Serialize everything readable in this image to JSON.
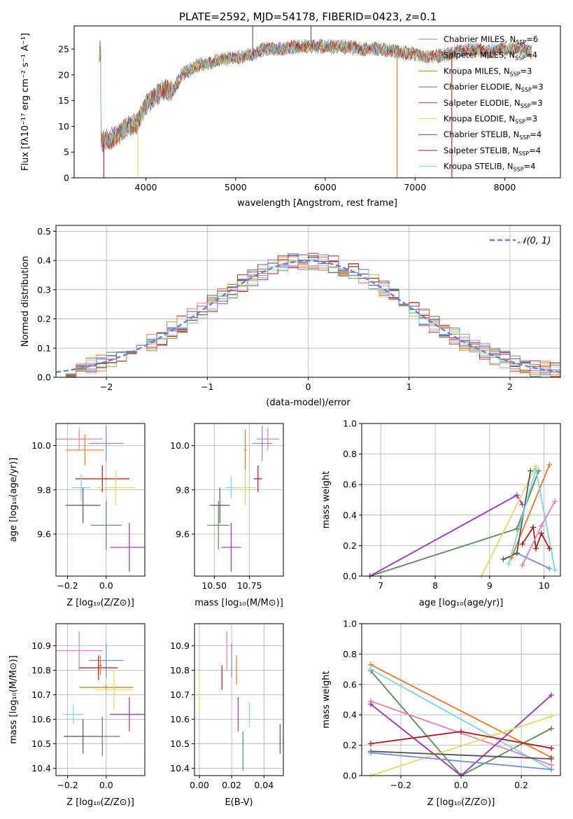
{
  "title": "PLATE=2592, MJD=54178, FIBERID=0423, z=0.1",
  "colors": {
    "Chabrier MILES": "#6f8fd9",
    "Salpeter MILES": "#e8782a",
    "Kroupa MILES": "#c07a18",
    "Chabrier ELODIE": "#5a8a5a",
    "Salpeter ELODIE": "#9b32b0",
    "Kroupa ELODIE": "#d8e060",
    "Chabrier STELIB": "#555555",
    "Salpeter STELIB": "#b01818",
    "Kroupa STELIB": "#79d6e2",
    "pink": "#e67fb0",
    "normal": "#5588dd"
  },
  "chart_data": [
    {
      "type": "line",
      "id": "spectrum",
      "title": "PLATE=2592, MJD=54178, FIBERID=0423, z=0.1",
      "xlabel": "wavelength [Angstrom, rest frame]",
      "ylabel": "Flux [fλ10⁻¹⁷ erg cm⁻² s⁻¹ A⁻¹]",
      "xlim": [
        3200,
        8620
      ],
      "ylim": [
        0,
        29.5
      ],
      "xticks": [
        "4000",
        "5000",
        "6000",
        "7000",
        "8000"
      ],
      "yticks": [
        "0",
        "5",
        "10",
        "15",
        "20",
        "25"
      ],
      "continuum": [
        [
          3500,
          7
        ],
        [
          3600,
          7.5
        ],
        [
          3700,
          8.5
        ],
        [
          3800,
          10
        ],
        [
          3900,
          10.5
        ],
        [
          4000,
          14
        ],
        [
          4100,
          16
        ],
        [
          4200,
          17
        ],
        [
          4300,
          17
        ],
        [
          4400,
          20
        ],
        [
          4500,
          21
        ],
        [
          4600,
          22
        ],
        [
          4700,
          22
        ],
        [
          4800,
          23
        ],
        [
          4900,
          23
        ],
        [
          5000,
          23.5
        ],
        [
          5100,
          23.5
        ],
        [
          5200,
          24
        ],
        [
          5300,
          25
        ],
        [
          5500,
          25
        ],
        [
          5700,
          25.5
        ],
        [
          5800,
          25.5
        ],
        [
          6000,
          25.5
        ],
        [
          6200,
          25.5
        ],
        [
          6400,
          25
        ],
        [
          6600,
          25
        ],
        [
          6800,
          24.5
        ],
        [
          7000,
          24
        ],
        [
          7200,
          23.5
        ],
        [
          7400,
          24
        ],
        [
          7600,
          25
        ],
        [
          7800,
          24.5
        ],
        [
          8000,
          25
        ],
        [
          8200,
          25
        ],
        [
          8300,
          24.5
        ]
      ],
      "legend": [
        {
          "label": "Chabrier MILES, N",
          "sub": "SSP",
          "tail": "=6",
          "color": "#6f8fd9"
        },
        {
          "label": "Salpeter MILES, N",
          "sub": "SSP",
          "tail": "=4",
          "color": "#e8782a"
        },
        {
          "label": "Kroupa MILES, N",
          "sub": "SSP",
          "tail": "=3",
          "color": "#c07a18"
        },
        {
          "label": "Chabrier ELODIE, N",
          "sub": "SSP",
          "tail": "=3",
          "color": "#5a8a5a"
        },
        {
          "label": "Salpeter ELODIE, N",
          "sub": "SSP",
          "tail": "=3",
          "color": "#9b32b0"
        },
        {
          "label": "Kroupa ELODIE, N",
          "sub": "SSP",
          "tail": "=3",
          "color": "#d8e060"
        },
        {
          "label": "Chabrier STELIB, N",
          "sub": "SSP",
          "tail": "=4",
          "color": "#555555"
        },
        {
          "label": "Salpeter STELIB, N",
          "sub": "SSP",
          "tail": "=4",
          "color": "#b01818"
        },
        {
          "label": "Kroupa STELIB, N",
          "sub": "SSP",
          "tail": "=4",
          "color": "#79d6e2"
        }
      ],
      "legend_position": "top-right"
    },
    {
      "type": "area",
      "id": "residuals",
      "xlabel": "(data-model)/error",
      "ylabel": "Normed distribution",
      "xlim": [
        -2.5,
        2.5
      ],
      "ylim": [
        0,
        0.52
      ],
      "xticks": [
        "−2",
        "−1",
        "0",
        "1",
        "2"
      ],
      "yticks": [
        "0.0",
        "0.1",
        "0.2",
        "0.3",
        "0.4",
        "0.5"
      ],
      "bin_width": 0.1,
      "bin_start": -2.5,
      "curve_label": "𝒩(0, 1)",
      "grid": true,
      "legend_position": "top-right"
    },
    {
      "type": "scatter",
      "id": "z-age",
      "xlabel": "Z [log₁₀(Z/Z⊙)]",
      "ylabel": "age  [log₁₀(age/yr)]",
      "xlim": [
        -0.26,
        0.2
      ],
      "ylim": [
        9.41,
        10.1
      ],
      "xticks": [
        "−0.2",
        "0.0"
      ],
      "yticks": [
        "9.6",
        "9.8",
        "10.0"
      ],
      "points": [
        {
          "x": -0.14,
          "y": 10.03,
          "xe": 0.12,
          "ye": 0.05,
          "c": "#e67fb0"
        },
        {
          "x": 0.0,
          "y": 10.01,
          "xe": 0.09,
          "ye": 0.08,
          "c": "#6f8fd9"
        },
        {
          "x": -0.11,
          "y": 9.98,
          "xe": 0.1,
          "ye": 0.07,
          "c": "#e8782a"
        },
        {
          "x": -0.02,
          "y": 9.85,
          "xe": 0.14,
          "ye": 0.06,
          "c": "#b01818"
        },
        {
          "x": -0.13,
          "y": 9.81,
          "xe": 0.05,
          "ye": 0.06,
          "c": "#79d6e2"
        },
        {
          "x": 0.05,
          "y": 9.81,
          "xe": 0.1,
          "ye": 0.08,
          "c": "#d8e060"
        },
        {
          "x": -0.12,
          "y": 9.73,
          "xe": 0.09,
          "ye": 0.08,
          "c": "#555555"
        },
        {
          "x": 0.0,
          "y": 9.64,
          "xe": 0.08,
          "ye": 0.11,
          "c": "#5a8a5a"
        },
        {
          "x": 0.12,
          "y": 9.54,
          "xe": 0.1,
          "ye": 0.11,
          "c": "#9b32b0"
        }
      ]
    },
    {
      "type": "scatter",
      "id": "mass-age",
      "xlabel": "mass [log₁₀(M/M⊙)]",
      "ylabel": "",
      "xlim": [
        10.36,
        10.99
      ],
      "ylim": [
        9.41,
        10.1
      ],
      "xticks": [
        "10.50",
        "10.75"
      ],
      "yticks": [
        "9.6",
        "9.8",
        "10.0"
      ],
      "points": [
        {
          "x": 10.88,
          "y": 10.03,
          "xe": 0.08,
          "ye": 0.05,
          "c": "#e67fb0"
        },
        {
          "x": 10.84,
          "y": 10.01,
          "xe": 0.07,
          "ye": 0.08,
          "c": "#6f8fd9"
        },
        {
          "x": 10.72,
          "y": 9.98,
          "xe": 0.01,
          "ye": 0.09,
          "c": "#e8782a"
        },
        {
          "x": 10.81,
          "y": 9.85,
          "xe": 0.03,
          "ye": 0.06,
          "c": "#b01818"
        },
        {
          "x": 10.62,
          "y": 9.81,
          "xe": 0.04,
          "ye": 0.05,
          "c": "#79d6e2"
        },
        {
          "x": 10.72,
          "y": 9.81,
          "xe": 0.08,
          "ye": 0.08,
          "c": "#d8e060"
        },
        {
          "x": 10.54,
          "y": 9.73,
          "xe": 0.07,
          "ye": 0.08,
          "c": "#555555"
        },
        {
          "x": 10.53,
          "y": 9.64,
          "xe": 0.08,
          "ye": 0.11,
          "c": "#5a8a5a"
        },
        {
          "x": 10.62,
          "y": 9.54,
          "xe": 0.07,
          "ye": 0.11,
          "c": "#9b32b0"
        }
      ]
    },
    {
      "type": "line",
      "id": "age-weight",
      "xlabel": "age  [log₁₀(age/yr)]",
      "ylabel": "mass weight",
      "xlim": [
        6.65,
        10.3
      ],
      "ylim": [
        0,
        1.0
      ],
      "xticks": [
        "7",
        "8",
        "9",
        "10"
      ],
      "yticks": [
        "0.0",
        "0.2",
        "0.4",
        "0.6",
        "0.8",
        "1.0"
      ],
      "series": [
        {
          "c": "#5a8a5a",
          "pts": [
            [
              6.8,
              0.0
            ],
            [
              9.5,
              0.31
            ],
            [
              9.9,
              0.69
            ]
          ]
        },
        {
          "c": "#9b32b0",
          "pts": [
            [
              6.8,
              0.0
            ],
            [
              9.5,
              0.53
            ],
            [
              9.6,
              0.47
            ]
          ]
        },
        {
          "c": "#d8e060",
          "pts": [
            [
              8.85,
              0.0
            ],
            [
              9.85,
              0.72
            ]
          ]
        },
        {
          "c": "#e8782a",
          "pts": [
            [
              9.4,
              0.12
            ],
            [
              10.1,
              0.73
            ]
          ]
        },
        {
          "c": "#6f8fd9",
          "pts": [
            [
              9.5,
              0.15
            ],
            [
              10.1,
              0.05
            ]
          ]
        },
        {
          "c": "#555555",
          "pts": [
            [
              9.25,
              0.11
            ],
            [
              9.5,
              0.15
            ],
            [
              9.75,
              0.69
            ]
          ]
        },
        {
          "c": "#b01818",
          "pts": [
            [
              9.6,
              0.21
            ],
            [
              9.8,
              0.32
            ],
            [
              9.85,
              0.18
            ],
            [
              9.95,
              0.28
            ],
            [
              10.1,
              0.18
            ]
          ]
        },
        {
          "c": "#79d6e2",
          "pts": [
            [
              9.35,
              0.08
            ],
            [
              9.85,
              0.7
            ],
            [
              10.2,
              0.04
            ]
          ]
        },
        {
          "c": "#e67fb0",
          "pts": [
            [
              9.6,
              0.07
            ],
            [
              9.95,
              0.33
            ],
            [
              10.2,
              0.49
            ]
          ]
        }
      ]
    },
    {
      "type": "scatter",
      "id": "z-mass",
      "xlabel": "Z [log₁₀(Z/Z⊙)]",
      "ylabel": "mass [log₁₀(M/M⊙)]",
      "xlim": [
        -0.26,
        0.2
      ],
      "ylim": [
        10.37,
        10.99
      ],
      "xticks": [
        "−0.2",
        "0.0"
      ],
      "yticks": [
        "10.4",
        "10.5",
        "10.6",
        "10.7",
        "10.8",
        "10.9"
      ],
      "points": [
        {
          "x": -0.14,
          "y": 10.88,
          "xe": 0.12,
          "ye": 0.08,
          "c": "#e67fb0"
        },
        {
          "x": 0.0,
          "y": 10.84,
          "xe": 0.09,
          "ye": 0.07,
          "c": "#6f8fd9"
        },
        {
          "x": -0.04,
          "y": 10.81,
          "xe": 0.1,
          "ye": 0.05,
          "c": "#b01818"
        },
        {
          "x": -0.03,
          "y": 10.82,
          "xe": 0.01,
          "ye": 0.04,
          "c": "#e8782a"
        },
        {
          "x": 0.0,
          "y": 10.73,
          "xe": 0.14,
          "ye": 0.01,
          "c": "#c07a18"
        },
        {
          "x": 0.04,
          "y": 10.72,
          "xe": 0.1,
          "ye": 0.08,
          "c": "#d8e060"
        },
        {
          "x": -0.17,
          "y": 10.62,
          "xe": 0.05,
          "ye": 0.04,
          "c": "#79d6e2"
        },
        {
          "x": 0.12,
          "y": 10.62,
          "xe": 0.1,
          "ye": 0.07,
          "c": "#9b32b0"
        },
        {
          "x": -0.12,
          "y": 10.53,
          "xe": 0.1,
          "ye": 0.07,
          "c": "#555555"
        },
        {
          "x": -0.02,
          "y": 10.53,
          "xe": 0.09,
          "ye": 0.08,
          "c": "#5a8a5a"
        }
      ]
    },
    {
      "type": "scatter",
      "id": "ebv-mass",
      "xlabel": "E(B-V)",
      "ylabel": "",
      "xlim": [
        -0.003,
        0.052
      ],
      "ylim": [
        10.37,
        10.99
      ],
      "xticks": [
        "0.00",
        "0.02",
        "0.04"
      ],
      "yticks": [
        "10.4",
        "10.5",
        "10.6",
        "10.7",
        "10.8",
        "10.9"
      ],
      "points": [
        {
          "x": 0.017,
          "y": 10.88,
          "xe": 0,
          "ye": 0.08,
          "c": "#e67fb0"
        },
        {
          "x": 0.02,
          "y": 10.84,
          "xe": 0,
          "ye": 0.07,
          "c": "#6f8fd9"
        },
        {
          "x": 0.023,
          "y": 10.8,
          "xe": 0,
          "ye": 0.06,
          "c": "#e8782a"
        },
        {
          "x": 0.014,
          "y": 10.77,
          "xe": 0,
          "ye": 0.05,
          "c": "#b01818"
        },
        {
          "x": 0.0,
          "y": 10.72,
          "xe": 0,
          "ye": 0.08,
          "c": "#d8e060"
        },
        {
          "x": 0.031,
          "y": 10.62,
          "xe": 0,
          "ye": 0.05,
          "c": "#79d6e2"
        },
        {
          "x": 0.024,
          "y": 10.62,
          "xe": 0,
          "ye": 0.07,
          "c": "#9b32b0"
        },
        {
          "x": 0.027,
          "y": 10.47,
          "xe": 0,
          "ye": 0.08,
          "c": "#5a8a5a"
        },
        {
          "x": 0.05,
          "y": 10.52,
          "xe": 0,
          "ye": 0.06,
          "c": "#555555"
        }
      ]
    },
    {
      "type": "line",
      "id": "z-weight",
      "xlabel": "Z [log₁₀(Z/Z⊙)]",
      "ylabel": "mass weight",
      "xlim": [
        -0.33,
        0.33
      ],
      "ylim": [
        0,
        1.0
      ],
      "xticks": [
        "−0.2",
        "0.0",
        "0.2"
      ],
      "yticks": [
        "0.0",
        "0.2",
        "0.4",
        "0.6",
        "0.8",
        "1.0"
      ],
      "series": [
        {
          "c": "#e8782a",
          "pts": [
            [
              -0.3,
              0.73
            ],
            [
              0.3,
              0.12
            ]
          ]
        },
        {
          "c": "#5a8a5a",
          "pts": [
            [
              -0.3,
              0.69
            ],
            [
              0.0,
              0.0
            ],
            [
              0.3,
              0.31
            ]
          ]
        },
        {
          "c": "#79d6e2",
          "pts": [
            [
              -0.3,
              0.7
            ],
            [
              0.3,
              0.04
            ]
          ]
        },
        {
          "c": "#e67fb0",
          "pts": [
            [
              -0.3,
              0.49
            ],
            [
              0.3,
              0.07
            ]
          ]
        },
        {
          "c": "#9b32b0",
          "pts": [
            [
              -0.3,
              0.47
            ],
            [
              0.0,
              0.0
            ],
            [
              0.3,
              0.53
            ]
          ]
        },
        {
          "c": "#d8e060",
          "pts": [
            [
              -0.3,
              0.0
            ],
            [
              0.3,
              0.39
            ]
          ]
        },
        {
          "c": "#b01818",
          "pts": [
            [
              -0.3,
              0.21
            ],
            [
              0.0,
              0.29
            ],
            [
              0.3,
              0.18
            ]
          ]
        },
        {
          "c": "#555555",
          "pts": [
            [
              -0.3,
              0.16
            ],
            [
              0.3,
              0.11
            ]
          ]
        },
        {
          "c": "#6f8fd9",
          "pts": [
            [
              -0.3,
              0.15
            ],
            [
              0.3,
              0.04
            ]
          ]
        }
      ]
    }
  ]
}
